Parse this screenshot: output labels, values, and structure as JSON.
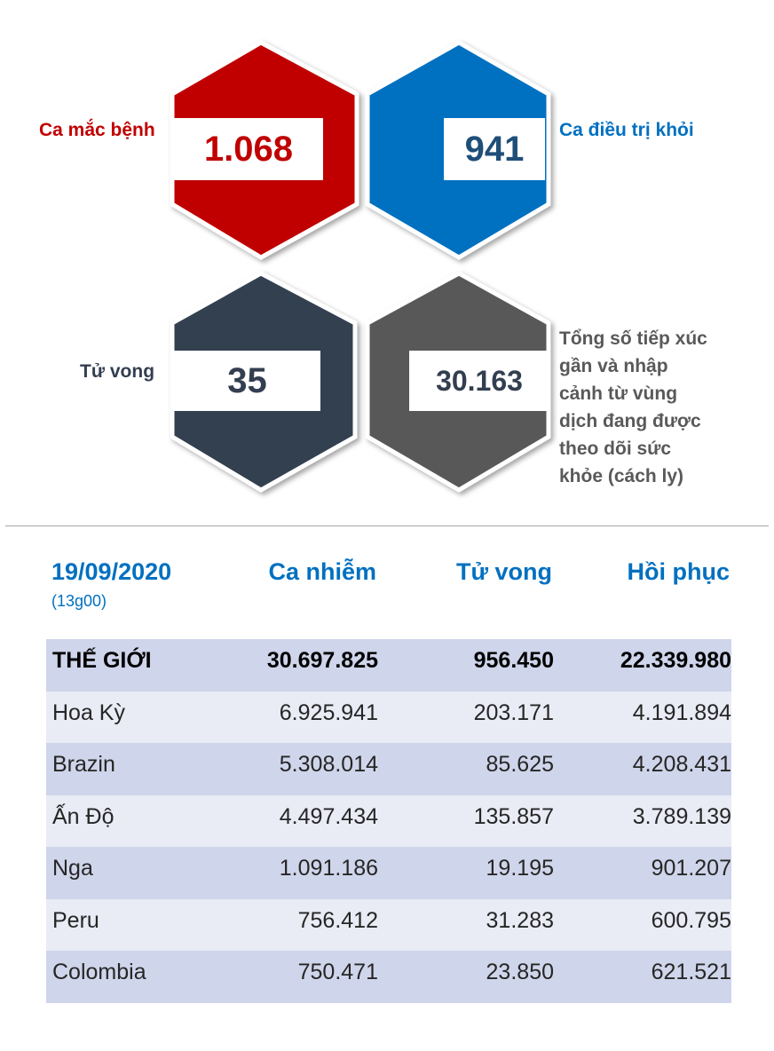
{
  "stats": {
    "infected": {
      "label": "Ca mắc bệnh",
      "value": "1.068",
      "color": "#c00000"
    },
    "recovered": {
      "label": "Ca điều trị khỏi",
      "value": "941",
      "color": "#0070c0"
    },
    "deaths": {
      "label": "Tử vong",
      "value": "35",
      "color": "#333f50"
    },
    "monitored": {
      "label_lines": [
        "Tổng số tiếp xúc",
        "gần và nhập",
        "cảnh từ vùng",
        "dịch đang được",
        "theo dõi sức",
        "khỏe (cách ly)"
      ],
      "value": "30.163",
      "color": "#595959"
    }
  },
  "table": {
    "date": "19/09/2020",
    "time": "(13g00)",
    "headers": {
      "cases": "Ca nhiễm",
      "deaths": "Tử vong",
      "recovered": "Hồi phục"
    },
    "rows": [
      {
        "name": "THẾ GIỚI",
        "cases": "30.697.825",
        "deaths": "956.450",
        "recovered": "22.339.980"
      },
      {
        "name": "Hoa Kỳ",
        "cases": "6.925.941",
        "deaths": "203.171",
        "recovered": "4.191.894"
      },
      {
        "name": "Brazin",
        "cases": "5.308.014",
        "deaths": "85.625",
        "recovered": "4.208.431"
      },
      {
        "name": "Ấn Độ",
        "cases": "4.497.434",
        "deaths": "135.857",
        "recovered": "3.789.139"
      },
      {
        "name": "Nga",
        "cases": "1.091.186",
        "deaths": "19.195",
        "recovered": "901.207"
      },
      {
        "name": "Peru",
        "cases": "756.412",
        "deaths": "31.283",
        "recovered": "600.795"
      },
      {
        "name": "Colombia",
        "cases": "750.471",
        "deaths": "23.850",
        "recovered": "621.521"
      }
    ]
  },
  "colors": {
    "row_odd": "#cfd5ea",
    "row_even": "#e9ebf5",
    "header_blue": "#0070c0"
  }
}
